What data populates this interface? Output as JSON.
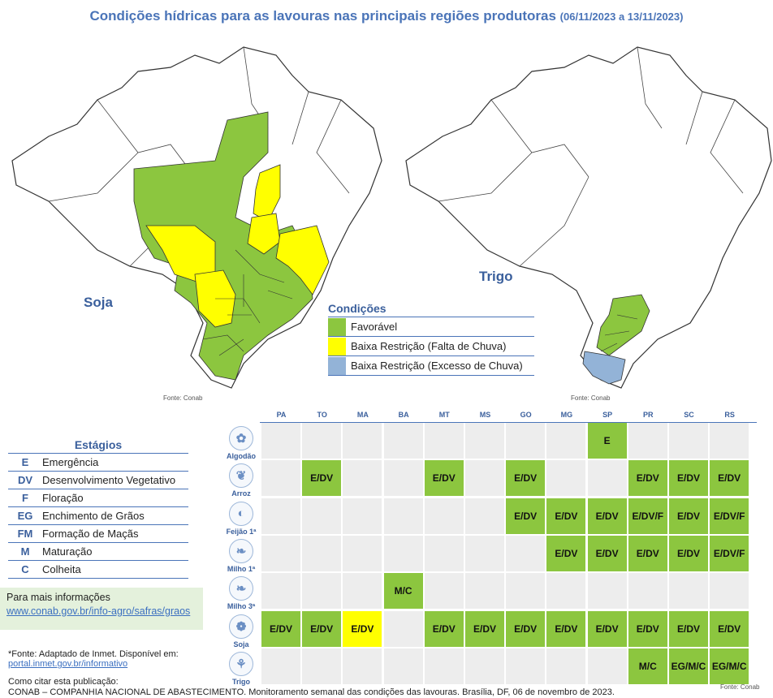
{
  "title": {
    "main": "Condições hídricas para as lavouras nas principais regiões produtoras",
    "dates": "(06/11/2023 a 13/11/2023)"
  },
  "maps": {
    "soja_label": "Soja",
    "trigo_label": "Trigo",
    "fonte": "Fonte: Conab"
  },
  "conditions_legend": {
    "title": "Condições",
    "items": [
      {
        "label": "Favorável",
        "color": "#8cc63f"
      },
      {
        "label": "Baixa Restrição (Falta de Chuva)",
        "color": "#ffff00"
      },
      {
        "label": "Baixa Restrição (Excesso de Chuva)",
        "color": "#93b3d7"
      }
    ]
  },
  "stages_legend": {
    "title": "Estágios",
    "items": [
      {
        "code": "E",
        "label": "Emergência"
      },
      {
        "code": "DV",
        "label": "Desenvolvimento Vegetativo"
      },
      {
        "code": "F",
        "label": "Floração"
      },
      {
        "code": "EG",
        "label": "Enchimento de Grãos"
      },
      {
        "code": "FM",
        "label": "Formação de Maçãs"
      },
      {
        "code": "M",
        "label": "Maturação"
      },
      {
        "code": "C",
        "label": "Colheita"
      }
    ]
  },
  "more_info": {
    "label": "Para mais informações",
    "link": "www.conab.gov.br/info-agro/safras/graos"
  },
  "source_note": {
    "label": "*Fonte: Adaptado de Inmet. Disponível em:",
    "link": "portal.inmet.gov.br/informativo"
  },
  "citation": {
    "label": "Como citar esta publicação:",
    "text": "CONAB – COMPANHIA NACIONAL DE ABASTECIMENTO. Monitoramento semanal das condições das lavouras. Brasília, DF, 06 de novembro de 2023."
  },
  "fonte_bottom": "Fonte: Conab",
  "colors": {
    "green": "#8cc63f",
    "yellow": "#ffff00",
    "blue": "#93b3d7",
    "empty": "#ededed"
  },
  "table": {
    "states": [
      "PA",
      "TO",
      "MA",
      "BA",
      "MT",
      "MS",
      "GO",
      "MG",
      "SP",
      "PR",
      "SC",
      "RS"
    ],
    "rows": [
      {
        "crop": "Algodão",
        "icon": "cotton-icon",
        "cells": [
          "",
          "",
          "",
          "",
          "",
          "",
          "",
          "",
          "E",
          "",
          "",
          ""
        ],
        "colors": [
          "",
          "",
          "",
          "",
          "",
          "",
          "",
          "",
          "green",
          "",
          "",
          ""
        ],
        "shaded": [
          false,
          false,
          false,
          false,
          false,
          false,
          false,
          false,
          false,
          false,
          false,
          false
        ]
      },
      {
        "crop": "Arroz",
        "icon": "rice-icon",
        "cells": [
          "",
          "E/DV",
          "",
          "",
          "E/DV",
          "",
          "E/DV",
          "",
          "",
          "E/DV",
          "E/DV",
          "E/DV"
        ],
        "colors": [
          "",
          "green",
          "",
          "",
          "green",
          "",
          "green",
          "",
          "",
          "green",
          "green",
          "green"
        ]
      },
      {
        "crop": "Feijão 1ª",
        "icon": "bean-icon",
        "cells": [
          "",
          "",
          "",
          "",
          "",
          "",
          "E/DV",
          "E/DV",
          "E/DV",
          "E/DV/F",
          "E/DV",
          "E/DV/F"
        ],
        "colors": [
          "",
          "",
          "",
          "",
          "",
          "",
          "green",
          "green",
          "green",
          "green",
          "green",
          "green"
        ]
      },
      {
        "crop": "Milho 1ª",
        "icon": "corn-icon",
        "cells": [
          "",
          "",
          "",
          "",
          "",
          "",
          "",
          "E/DV",
          "E/DV",
          "E/DV",
          "E/DV",
          "E/DV/F"
        ],
        "colors": [
          "",
          "",
          "",
          "",
          "",
          "",
          "",
          "green",
          "green",
          "green",
          "green",
          "green"
        ]
      },
      {
        "crop": "Milho 3ª",
        "icon": "corn-icon",
        "cells": [
          "",
          "",
          "",
          "M/C",
          "",
          "",
          "",
          "",
          "",
          "",
          "",
          ""
        ],
        "colors": [
          "",
          "",
          "",
          "green",
          "",
          "",
          "",
          "",
          "",
          "",
          "",
          ""
        ]
      },
      {
        "crop": "Soja",
        "icon": "soy-icon",
        "cells": [
          "E/DV",
          "E/DV",
          "E/DV",
          "",
          "E/DV",
          "E/DV",
          "E/DV",
          "E/DV",
          "E/DV",
          "E/DV",
          "E/DV",
          "E/DV"
        ],
        "colors": [
          "green",
          "green",
          "yellow",
          "",
          "green",
          "green",
          "green",
          "green",
          "green",
          "green",
          "green",
          "green"
        ]
      },
      {
        "crop": "Trigo",
        "icon": "wheat-icon",
        "cells": [
          "",
          "",
          "",
          "",
          "",
          "",
          "",
          "",
          "",
          "M/C",
          "EG/M/C",
          "EG/M/C"
        ],
        "colors": [
          "",
          "",
          "",
          "",
          "",
          "",
          "",
          "",
          "",
          "green",
          "green",
          "green"
        ]
      }
    ]
  }
}
